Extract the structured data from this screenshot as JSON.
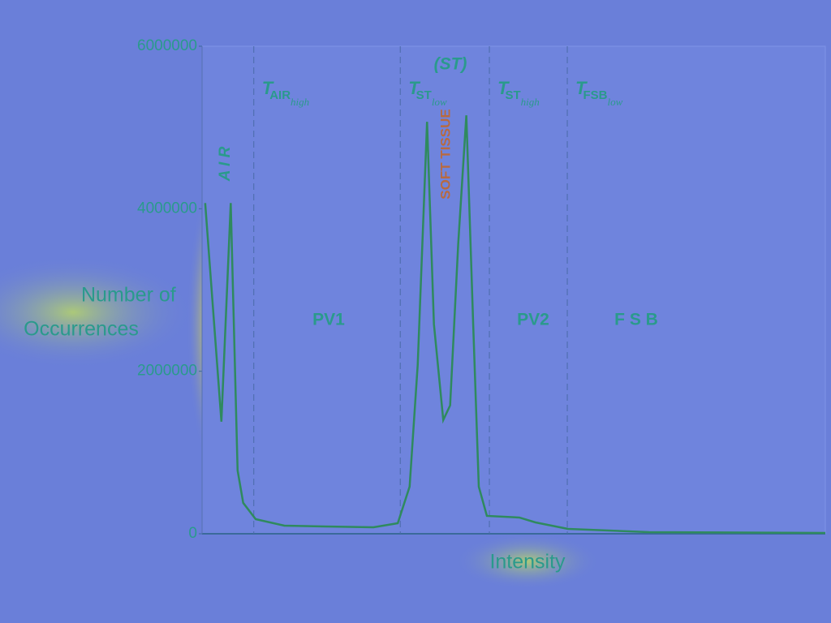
{
  "chart_data": {
    "type": "line",
    "ylabel": [
      "Number of",
      "Occurrences"
    ],
    "xlabel": "Intensity",
    "ylim": [
      0,
      6000000
    ],
    "yticks": [
      0,
      2000000,
      4000000,
      6000000
    ],
    "xlim": [
      0,
      100
    ],
    "series": [
      {
        "color": "#2f8a5e",
        "x": [
          0.5,
          3.1,
          4.6,
          5.7,
          6.6,
          8.6,
          13.2,
          19.7,
          27.5,
          31.4,
          33.3,
          34.6,
          36.1,
          37.2,
          38.7,
          39.8,
          41.1,
          42.4,
          43.5,
          44.4,
          45.7,
          50.9,
          53.5,
          58.7,
          71.7,
          100
        ],
        "values": [
          4070000,
          1380000,
          4070000,
          780000,
          380000,
          180000,
          100000,
          90000,
          80000,
          130000,
          580000,
          2080000,
          5070000,
          2580000,
          1400000,
          1580000,
          3570000,
          5150000,
          2580000,
          580000,
          220000,
          200000,
          140000,
          60000,
          20000,
          10000
        ]
      }
    ],
    "thresholds": [
      {
        "x": 8.3,
        "symbol": "T",
        "sub": "AIR",
        "mod": "high"
      },
      {
        "x": 31.8,
        "symbol": "T",
        "sub": "ST",
        "mod": "low"
      },
      {
        "x": 46.1,
        "symbol": "T",
        "sub": "ST",
        "mod": "high"
      },
      {
        "x": 58.6,
        "symbol": "T",
        "sub": "FSB",
        "mod": "low"
      }
    ],
    "regions": [
      "PV1",
      "PV2",
      "F S B"
    ],
    "peak_labels": [
      "A I R",
      "SOFT TISSUE",
      "(ST)"
    ]
  }
}
